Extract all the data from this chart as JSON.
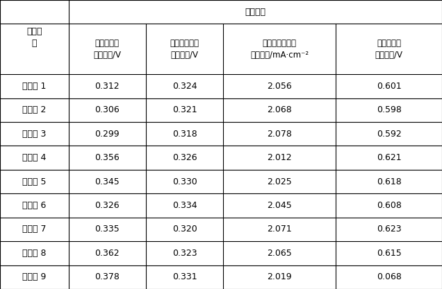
{
  "title_row": "催化活性",
  "col0_header_line1": "检测结",
  "col0_header_line2": "果",
  "col_headers": [
    "甲醇氧化峰\n起始电势/V",
    "中间毒物氧化\n峰电势值/V",
    "甲醇催化氧化峰\n电流密度/mA·cm⁻²",
    "甲醇催化氧\n化峰电势/V"
  ],
  "row_labels": [
    "实施例 1",
    "实施例 2",
    "实施例 3",
    "实施例 4",
    "实施例 5",
    "实施例 6",
    "实施例 7",
    "实施例 8",
    "实施例 9"
  ],
  "data": [
    [
      "0.312",
      "0.324",
      "2.056",
      "0.601"
    ],
    [
      "0.306",
      "0.321",
      "2.068",
      "0.598"
    ],
    [
      "0.299",
      "0.318",
      "2.078",
      "0.592"
    ],
    [
      "0.356",
      "0.326",
      "2.012",
      "0.621"
    ],
    [
      "0.345",
      "0.330",
      "2.025",
      "0.618"
    ],
    [
      "0.326",
      "0.334",
      "2.045",
      "0.608"
    ],
    [
      "0.335",
      "0.320",
      "2.071",
      "0.623"
    ],
    [
      "0.362",
      "0.323",
      "2.065",
      "0.615"
    ],
    [
      "0.378",
      "0.331",
      "2.019",
      "0.068"
    ]
  ],
  "background_color": "#ffffff",
  "line_color": "#000000",
  "text_color": "#000000",
  "header_fontsize": 9,
  "data_fontsize": 9,
  "fig_width": 6.36,
  "fig_height": 4.17
}
